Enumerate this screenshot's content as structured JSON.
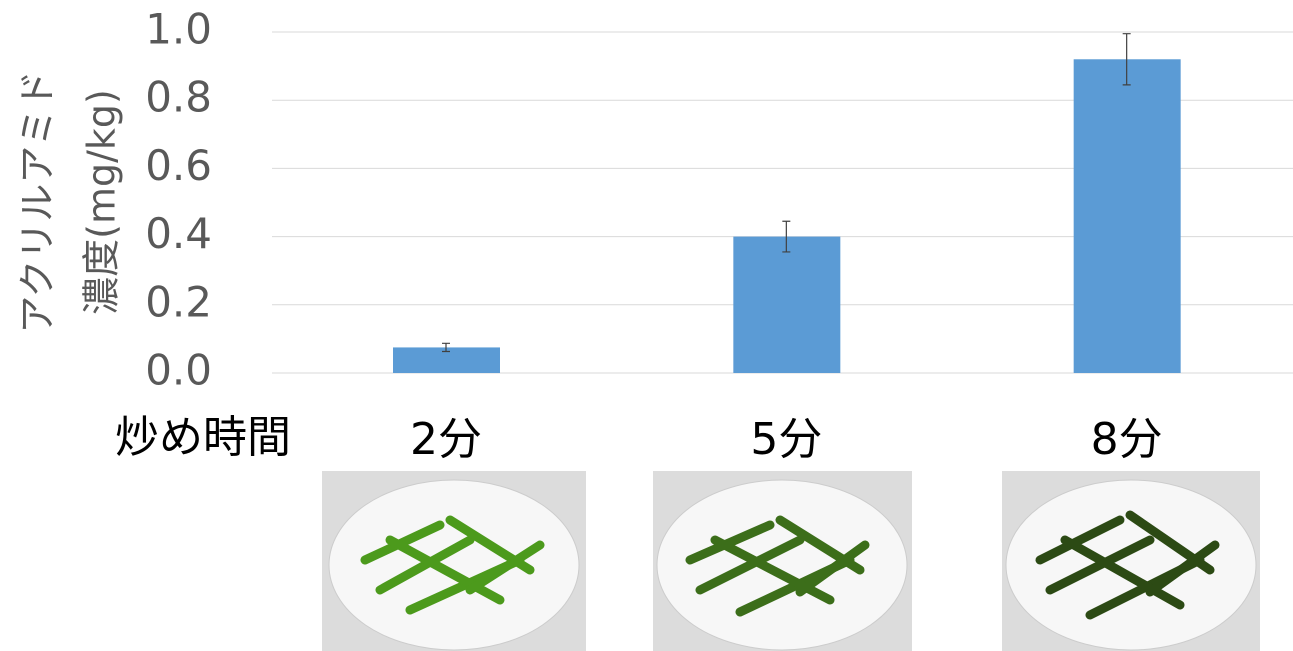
{
  "chart_data": {
    "type": "bar",
    "y_label": [
      "アクリルアミド",
      "濃度(mg/kg)"
    ],
    "x_label": "炒め時間",
    "categories": [
      "2分",
      "5分",
      "8分"
    ],
    "series": [
      {
        "color": "#5b9bd5",
        "values": [
          0.075,
          0.4,
          0.92
        ],
        "errors": [
          0.012,
          0.045,
          0.075
        ]
      }
    ],
    "ylim": [
      0,
      1
    ],
    "yticks": [
      {
        "value": 0,
        "label": "0.0"
      },
      0.2,
      0.4,
      0.6,
      0.8,
      {
        "value": 1,
        "label": "1.0"
      }
    ],
    "grid": true
  }
}
